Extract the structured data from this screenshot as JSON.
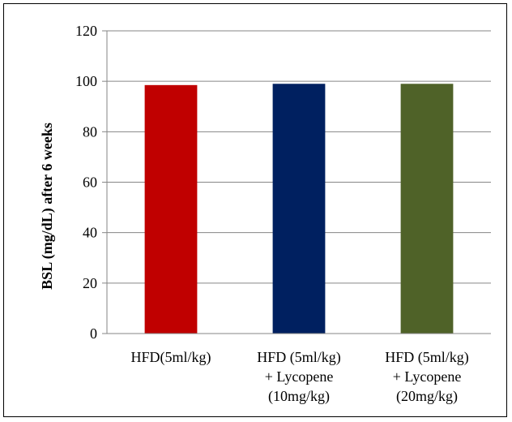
{
  "chart_data": {
    "type": "bar",
    "title": "",
    "xlabel": "",
    "ylabel": "BSL (mg/dL) after 6 weeks",
    "ylim": [
      0,
      120
    ],
    "yticks": [
      0,
      20,
      40,
      60,
      80,
      100,
      120
    ],
    "grid": true,
    "legend": "none",
    "categories": [
      [
        "HFD(5ml/kg)"
      ],
      [
        "HFD (5ml/kg)",
        "+ Lycopene",
        "(10mg/kg)"
      ],
      [
        "HFD (5ml/kg)",
        "+ Lycopene",
        "(20mg/kg)"
      ]
    ],
    "values": [
      98.5,
      99,
      99
    ],
    "colors": [
      "#c00000",
      "#002060",
      "#4f6228"
    ]
  }
}
